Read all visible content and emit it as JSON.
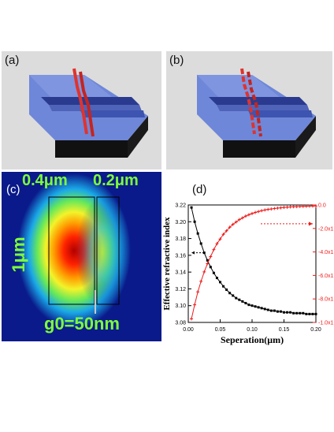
{
  "panels": {
    "a": {
      "label": "(a)"
    },
    "b": {
      "label": "(b)"
    },
    "c": {
      "label": "(c)",
      "width_left": "0.4μm",
      "width_right": "0.2μm",
      "height": "1μm",
      "gap": "g0=50nm"
    },
    "d": {
      "label": "(d)"
    }
  },
  "colors": {
    "panel_bg": "#dcdcdc",
    "slab_top": "#6f87d8",
    "slab_side": "#5a6fc4",
    "base_black": "#111111",
    "waveguide_red": "#e0332e",
    "field_bg": "#0a1a8a",
    "series_black": "#000000",
    "series_red": "#ee1c1c",
    "label_green": "#7dff3a"
  },
  "chart_data": {
    "type": "line",
    "xlabel": "Seperation(μm)",
    "ylabel": "Effective refractive index",
    "xlim": [
      0.0,
      0.2
    ],
    "ylim": [
      3.08,
      3.22
    ],
    "y2lim": [
      -1.0,
      0.0
    ],
    "x_ticks": [
      "0.00",
      "0.05",
      "0.10",
      "0.15",
      "0.20"
    ],
    "y_ticks": [
      "3.08",
      "3.10",
      "3.12",
      "3.14",
      "3.16",
      "3.18",
      "3.20",
      "3.22"
    ],
    "y2_ticks": [
      "0.0",
      "-2.0x1",
      "-4.0x1",
      "-6.0x1",
      "-8.0x1",
      "-1.0x1"
    ],
    "x": [
      0.005,
      0.01,
      0.015,
      0.02,
      0.025,
      0.03,
      0.035,
      0.04,
      0.045,
      0.05,
      0.055,
      0.06,
      0.065,
      0.07,
      0.075,
      0.08,
      0.085,
      0.09,
      0.095,
      0.1,
      0.105,
      0.11,
      0.115,
      0.12,
      0.125,
      0.13,
      0.135,
      0.14,
      0.145,
      0.15,
      0.155,
      0.16,
      0.165,
      0.17,
      0.175,
      0.18,
      0.185,
      0.19,
      0.195,
      0.2
    ],
    "series": [
      {
        "axis": "left",
        "marker": "square",
        "values": [
          3.217,
          3.2,
          3.186,
          3.174,
          3.163,
          3.154,
          3.146,
          3.139,
          3.133,
          3.128,
          3.123,
          3.119,
          3.115,
          3.112,
          3.109,
          3.107,
          3.105,
          3.103,
          3.101,
          3.1,
          3.099,
          3.098,
          3.097,
          3.096,
          3.095,
          3.094,
          3.094,
          3.093,
          3.093,
          3.092,
          3.092,
          3.092,
          3.091,
          3.091,
          3.091,
          3.091,
          3.09,
          3.09,
          3.09,
          3.09
        ]
      },
      {
        "axis": "right",
        "marker": "plus",
        "values": [
          -0.97,
          -0.85,
          -0.74,
          -0.65,
          -0.57,
          -0.5,
          -0.44,
          -0.38,
          -0.33,
          -0.29,
          -0.25,
          -0.22,
          -0.19,
          -0.165,
          -0.145,
          -0.125,
          -0.11,
          -0.095,
          -0.083,
          -0.073,
          -0.064,
          -0.056,
          -0.049,
          -0.043,
          -0.038,
          -0.034,
          -0.03,
          -0.027,
          -0.024,
          -0.021,
          -0.019,
          -0.017,
          -0.015,
          -0.014,
          -0.013,
          -0.012,
          -0.011,
          -0.01,
          -0.009,
          -0.008
        ]
      }
    ],
    "annotations": {
      "black_arrow_y": 3.163,
      "red_arrow_y2": -0.16
    }
  }
}
